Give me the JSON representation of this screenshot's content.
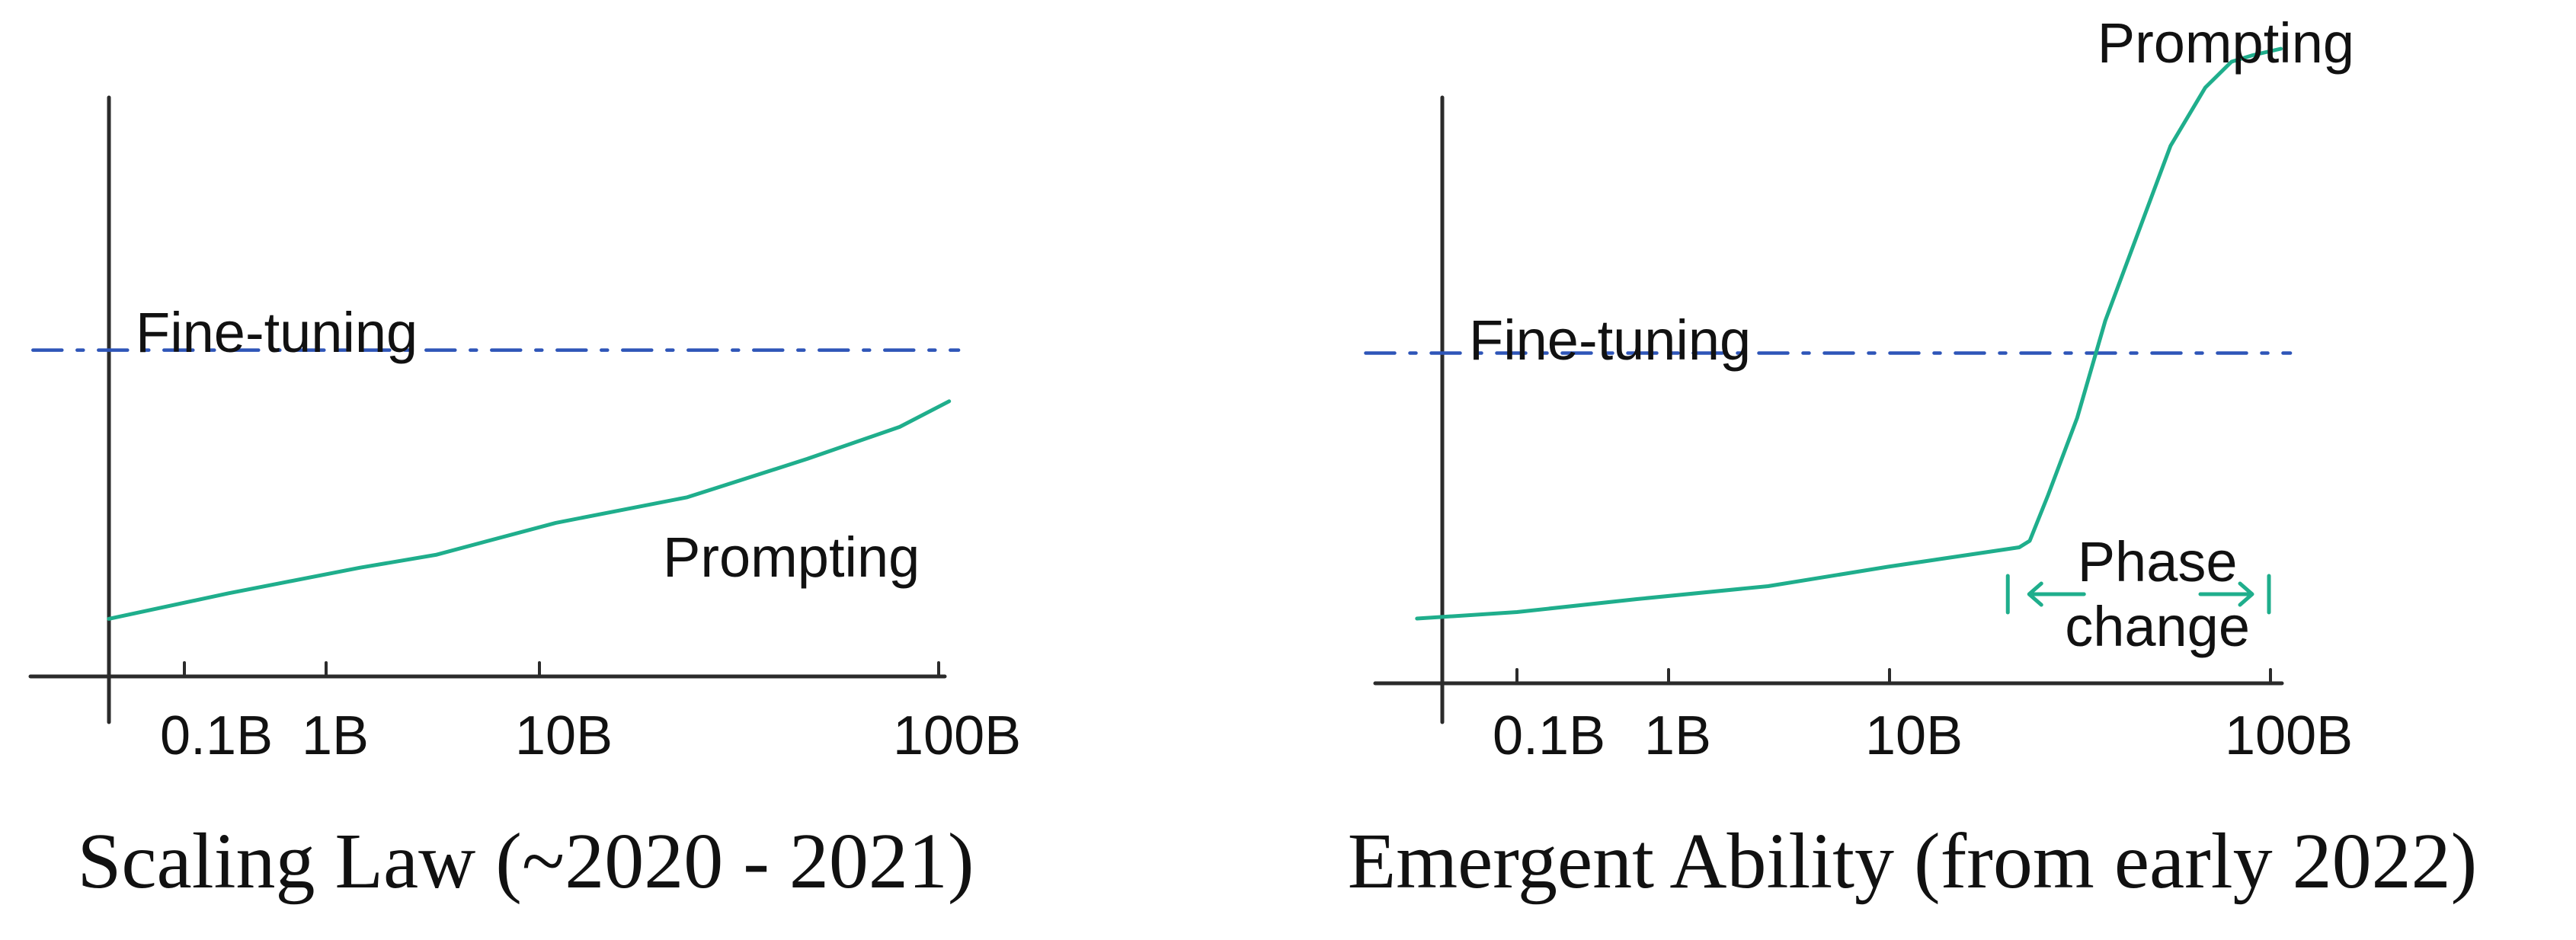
{
  "colors": {
    "fine_tuning": "#2e55b8",
    "prompting": "#1fae8c",
    "axis": "#2b2b2b"
  },
  "chart_data": [
    {
      "type": "line",
      "title": "Scaling Law (~2020 - 2021)",
      "xlabel": "",
      "ylabel": "",
      "x_scale": "log",
      "x_ticks": [
        {
          "value": 0.1,
          "label": "0.1B"
        },
        {
          "value": 1,
          "label": "1B"
        },
        {
          "value": 10,
          "label": "10B"
        },
        {
          "value": 100,
          "label": "100B"
        }
      ],
      "xlim": [
        0.035,
        120
      ],
      "ylim": [
        0,
        100
      ],
      "grid": false,
      "series": [
        {
          "name": "Fine-tuning",
          "style": "dashed",
          "x": [
            0.025,
            120
          ],
          "values": [
            51,
            51
          ]
        },
        {
          "name": "Prompting",
          "style": "solid",
          "x": [
            0.05,
            0.15,
            0.5,
            1,
            3,
            10,
            30,
            70,
            110
          ],
          "values": [
            9,
            13,
            17,
            19,
            24,
            28,
            34,
            39,
            43
          ]
        }
      ]
    },
    {
      "type": "line",
      "title": "Emergent Ability (from early 2022)",
      "xlabel": "",
      "ylabel": "",
      "x_scale": "log",
      "x_ticks": [
        {
          "value": 0.1,
          "label": "0.1B"
        },
        {
          "value": 1,
          "label": "1B"
        },
        {
          "value": 10,
          "label": "10B"
        },
        {
          "value": 100,
          "label": "100B"
        }
      ],
      "xlim": [
        0.035,
        120
      ],
      "ylim": [
        0,
        100
      ],
      "grid": false,
      "annotation": {
        "lines": [
          "Phase",
          "change"
        ],
        "from_x": 9,
        "to_x": 100
      },
      "series": [
        {
          "name": "Fine-tuning",
          "style": "dashed",
          "x": [
            0.025,
            120
          ],
          "values": [
            51,
            51
          ]
        },
        {
          "name": "Prompting",
          "style": "solid",
          "x": [
            0.04,
            0.1,
            0.3,
            1,
            3,
            10,
            11,
            13,
            17,
            22,
            30,
            40,
            55,
            70,
            85,
            110
          ],
          "values": [
            10,
            11,
            13,
            15,
            18,
            21,
            22,
            29,
            41,
            56,
            70,
            83,
            92,
            96,
            97,
            98
          ]
        }
      ]
    }
  ]
}
